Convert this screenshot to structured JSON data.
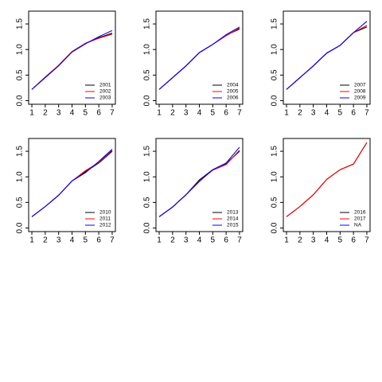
{
  "chart_data": [
    {
      "type": "line",
      "x": [
        1,
        2,
        3,
        4,
        5,
        6,
        7
      ],
      "xlim": [
        0.76,
        7.24
      ],
      "xticks": [
        1,
        2,
        3,
        4,
        5,
        6,
        7
      ],
      "ylim": [
        -0.07,
        1.75
      ],
      "yticks": [
        {
          "value": 0,
          "label": "0.0"
        },
        0.5,
        {
          "value": 1,
          "label": "1.0"
        },
        1.5
      ],
      "legend": "bottomright",
      "series": [
        {
          "name": "2001",
          "color": "#000000",
          "values": [
            0.22,
            0.46,
            0.69,
            0.96,
            1.12,
            1.23,
            1.32
          ]
        },
        {
          "name": "2002",
          "color": "#ff0000",
          "values": [
            0.22,
            0.46,
            0.69,
            0.96,
            1.12,
            1.22,
            1.3
          ]
        },
        {
          "name": "2003",
          "color": "#0000ff",
          "values": [
            0.22,
            0.45,
            0.68,
            0.95,
            1.11,
            1.25,
            1.37
          ]
        }
      ]
    },
    {
      "type": "line",
      "x": [
        1,
        2,
        3,
        4,
        5,
        6,
        7
      ],
      "xlim": [
        0.76,
        7.24
      ],
      "xticks": [
        1,
        2,
        3,
        4,
        5,
        6,
        7
      ],
      "ylim": [
        -0.07,
        1.75
      ],
      "yticks": [
        {
          "value": 0,
          "label": "0.0"
        },
        0.5,
        {
          "value": 1,
          "label": "1.0"
        },
        1.5
      ],
      "legend": "bottomright",
      "series": [
        {
          "name": "2004",
          "color": "#000000",
          "values": [
            0.22,
            0.45,
            0.68,
            0.94,
            1.1,
            1.28,
            1.4
          ]
        },
        {
          "name": "2005",
          "color": "#ff0000",
          "values": [
            0.22,
            0.45,
            0.68,
            0.94,
            1.1,
            1.27,
            1.42
          ]
        },
        {
          "name": "2006",
          "color": "#0000ff",
          "values": [
            0.22,
            0.45,
            0.68,
            0.94,
            1.1,
            1.29,
            1.44
          ]
        }
      ]
    },
    {
      "type": "line",
      "x": [
        1,
        2,
        3,
        4,
        5,
        6,
        7
      ],
      "xlim": [
        0.76,
        7.24
      ],
      "xticks": [
        1,
        2,
        3,
        4,
        5,
        6,
        7
      ],
      "ylim": [
        -0.07,
        1.75
      ],
      "yticks": [
        {
          "value": 0,
          "label": "0.0"
        },
        0.5,
        {
          "value": 1,
          "label": "1.0"
        },
        1.5
      ],
      "legend": "bottomright",
      "series": [
        {
          "name": "2007",
          "color": "#000000",
          "values": [
            0.22,
            0.45,
            0.68,
            0.93,
            1.08,
            1.33,
            1.44
          ]
        },
        {
          "name": "2008",
          "color": "#ff0000",
          "values": [
            0.22,
            0.45,
            0.68,
            0.93,
            1.08,
            1.33,
            1.47
          ]
        },
        {
          "name": "2009",
          "color": "#0000ff",
          "values": [
            0.22,
            0.45,
            0.68,
            0.93,
            1.08,
            1.33,
            1.55
          ]
        }
      ]
    },
    {
      "type": "line",
      "x": [
        1,
        2,
        3,
        4,
        5,
        6,
        7
      ],
      "xlim": [
        0.76,
        7.24
      ],
      "xticks": [
        1,
        2,
        3,
        4,
        5,
        6,
        7
      ],
      "ylim": [
        -0.07,
        1.75
      ],
      "yticks": [
        {
          "value": 0,
          "label": "0.0"
        },
        0.5,
        {
          "value": 1,
          "label": "1.0"
        },
        1.5
      ],
      "legend": "bottomright",
      "series": [
        {
          "name": "2010",
          "color": "#000000",
          "values": [
            0.22,
            0.42,
            0.64,
            0.92,
            1.1,
            1.27,
            1.5
          ]
        },
        {
          "name": "2011",
          "color": "#ff0000",
          "values": [
            0.22,
            0.42,
            0.64,
            0.92,
            1.12,
            1.28,
            1.52
          ]
        },
        {
          "name": "2012",
          "color": "#0000ff",
          "values": [
            0.22,
            0.42,
            0.64,
            0.92,
            1.08,
            1.3,
            1.54
          ]
        }
      ]
    },
    {
      "type": "line",
      "x": [
        1,
        2,
        3,
        4,
        5,
        6,
        7
      ],
      "xlim": [
        0.76,
        7.24
      ],
      "xticks": [
        1,
        2,
        3,
        4,
        5,
        6,
        7
      ],
      "ylim": [
        -0.07,
        1.75
      ],
      "yticks": [
        {
          "value": 0,
          "label": "0.0"
        },
        0.5,
        {
          "value": 1,
          "label": "1.0"
        },
        1.5
      ],
      "legend": "bottomright",
      "series": [
        {
          "name": "2013",
          "color": "#000000",
          "values": [
            0.22,
            0.41,
            0.65,
            0.94,
            1.14,
            1.26,
            1.5
          ]
        },
        {
          "name": "2014",
          "color": "#ff0000",
          "values": [
            0.22,
            0.41,
            0.65,
            0.92,
            1.13,
            1.24,
            1.52
          ]
        },
        {
          "name": "2015",
          "color": "#0000ff",
          "values": [
            0.22,
            0.41,
            0.65,
            0.91,
            1.14,
            1.27,
            1.58
          ]
        }
      ]
    },
    {
      "type": "line",
      "x": [
        1,
        2,
        3,
        4,
        5,
        6,
        7
      ],
      "xlim": [
        0.76,
        7.24
      ],
      "xticks": [
        1,
        2,
        3,
        4,
        5,
        6,
        7
      ],
      "ylim": [
        -0.07,
        1.75
      ],
      "yticks": [
        {
          "value": 0,
          "label": "0.0"
        },
        0.5,
        {
          "value": 1,
          "label": "1.0"
        },
        1.5
      ],
      "legend": "bottomright",
      "series": [
        {
          "name": "2016",
          "color": "#000000",
          "values": [
            0.22,
            0.42,
            0.65,
            0.95,
            1.14,
            1.25,
            1.67
          ]
        },
        {
          "name": "2017",
          "color": "#ff0000",
          "values": [
            0.22,
            0.42,
            0.65,
            0.95,
            1.14,
            1.25,
            1.67
          ]
        },
        {
          "name": "NA",
          "color": "#0000ff",
          "values": [
            null,
            null,
            null,
            null,
            null,
            null,
            null
          ]
        }
      ]
    }
  ]
}
